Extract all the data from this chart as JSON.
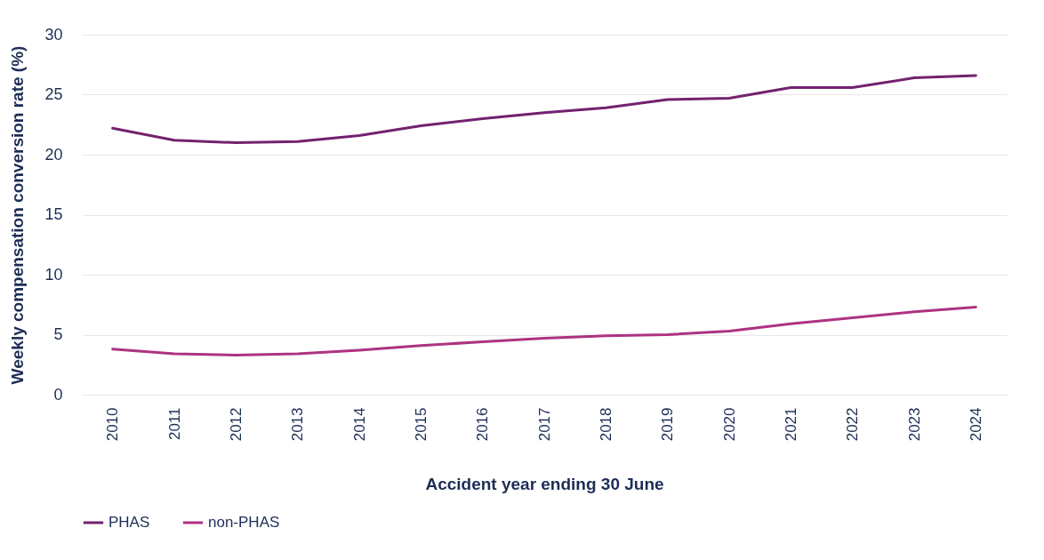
{
  "chart_data": {
    "type": "line",
    "xlabel": "Accident year ending 30 June",
    "ylabel": "Weekly compensation conversion rate (%)",
    "categories": [
      "2010",
      "2011",
      "2012",
      "2013",
      "2014",
      "2015",
      "2016",
      "2017",
      "2018",
      "2019",
      "2020",
      "2021",
      "2022",
      "2023",
      "2024"
    ],
    "series": [
      {
        "name": "PHAS",
        "color": "#72226f",
        "values": [
          22.2,
          21.2,
          21.0,
          21.1,
          21.6,
          22.4,
          23.0,
          23.5,
          23.9,
          24.6,
          24.7,
          25.6,
          25.6,
          26.4,
          26.6
        ]
      },
      {
        "name": "non-PHAS",
        "color": "#ad3283",
        "values": [
          3.8,
          3.4,
          3.3,
          3.4,
          3.7,
          4.1,
          4.4,
          4.7,
          4.9,
          5.0,
          5.3,
          5.9,
          6.4,
          6.9,
          7.3
        ]
      }
    ],
    "ylim": [
      0,
      30
    ],
    "yticks": [
      0,
      5,
      10,
      15,
      20,
      25,
      30
    ],
    "grid": "y",
    "legend": "bottom",
    "marker": "none",
    "line_style": "solid"
  }
}
